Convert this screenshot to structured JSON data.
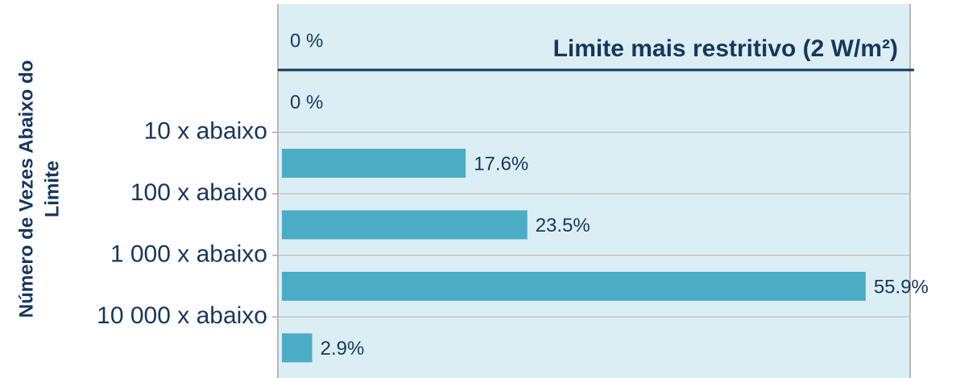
{
  "chart_data": {
    "type": "bar",
    "orientation": "horizontal",
    "title": "Limite mais restritivo (2 W/m²)",
    "ylabel": [
      "Número de Vezes Abaixo do",
      "Limite"
    ],
    "boundary_labels": [
      "10 x abaixo",
      "100 x abaixo",
      "1 000 x abaixo",
      "10 000 x abaixo"
    ],
    "values": [
      0,
      0,
      17.6,
      23.5,
      55.9,
      2.9
    ],
    "value_labels": [
      "0 %",
      "0 %",
      "17.6%",
      "23.5%",
      "55.9%",
      "2.9%"
    ],
    "color": "#4bacc6",
    "xlim": [
      0,
      60
    ],
    "grid": true
  }
}
